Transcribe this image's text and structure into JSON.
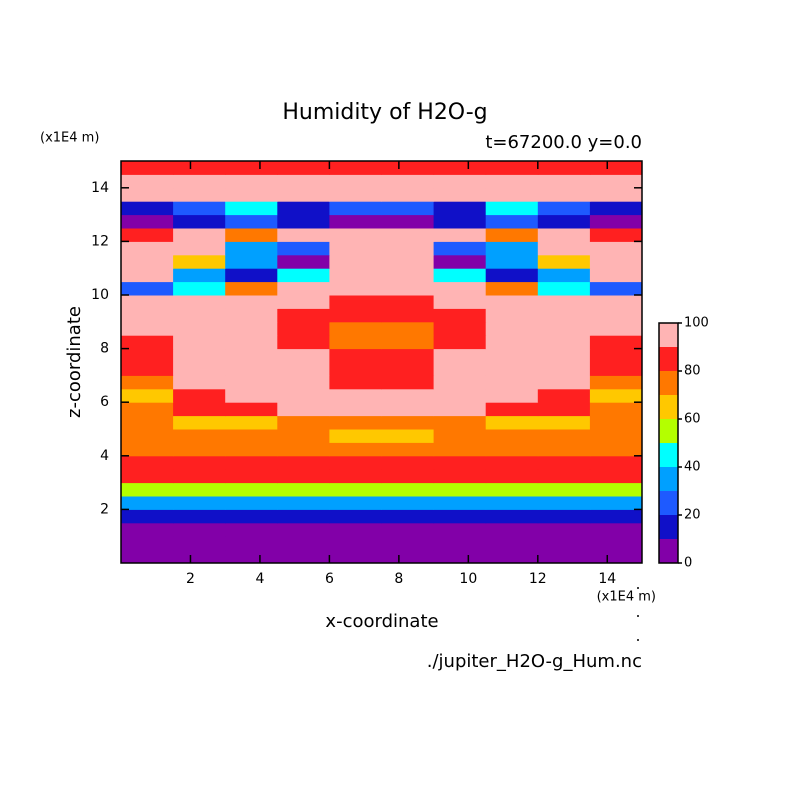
{
  "chart_data": {
    "type": "contour",
    "title": "Humidity of H2O-g",
    "subtitle": "t=67200.0 y=0.0",
    "xlabel": "x-coordinate",
    "ylabel": "z-coordinate",
    "x_unit": "(x1E4 m)",
    "y_unit": "(x1E4 m)",
    "source": "./jupiter_H2O-g_Hum.nc",
    "xlim": [
      0,
      15
    ],
    "ylim": [
      0,
      15
    ],
    "xticks": [
      2,
      4,
      6,
      8,
      10,
      12,
      14
    ],
    "yticks": [
      2,
      4,
      6,
      8,
      10,
      12,
      14
    ],
    "x": [
      0.75,
      2.25,
      3.75,
      5.25,
      6.75,
      8.25,
      9.75,
      11.25,
      12.75,
      14.25
    ],
    "y": [
      0.25,
      0.75,
      1.25,
      1.75,
      2.25,
      2.75,
      3.25,
      3.75,
      4.25,
      4.75,
      5.25,
      5.75,
      6.25,
      6.75,
      7.25,
      7.75,
      8.25,
      8.75,
      9.25,
      9.75,
      10.25,
      10.75,
      11.25,
      11.75,
      12.25,
      12.75,
      13.25,
      13.75,
      14.25,
      14.75
    ],
    "z": [
      [
        5,
        5,
        5,
        5,
        5,
        5,
        5,
        5,
        5,
        5
      ],
      [
        5,
        5,
        5,
        5,
        5,
        5,
        5,
        5,
        5,
        5
      ],
      [
        5,
        5,
        5,
        5,
        5,
        5,
        5,
        5,
        5,
        5
      ],
      [
        15,
        15,
        15,
        15,
        15,
        15,
        15,
        15,
        15,
        15
      ],
      [
        35,
        35,
        35,
        35,
        35,
        35,
        35,
        35,
        35,
        35
      ],
      [
        55,
        55,
        55,
        55,
        55,
        55,
        55,
        55,
        55,
        55
      ],
      [
        85,
        85,
        85,
        85,
        85,
        85,
        85,
        85,
        85,
        85
      ],
      [
        85,
        85,
        85,
        85,
        85,
        85,
        85,
        85,
        85,
        85
      ],
      [
        75,
        75,
        75,
        75,
        75,
        75,
        75,
        75,
        75,
        75
      ],
      [
        75,
        75,
        75,
        75,
        65,
        65,
        75,
        75,
        75,
        75
      ],
      [
        75,
        65,
        65,
        75,
        75,
        75,
        75,
        65,
        65,
        75
      ],
      [
        75,
        85,
        85,
        95,
        95,
        95,
        95,
        85,
        85,
        75
      ],
      [
        65,
        85,
        95,
        95,
        95,
        95,
        95,
        95,
        85,
        65
      ],
      [
        75,
        95,
        95,
        95,
        85,
        85,
        95,
        95,
        95,
        75
      ],
      [
        85,
        95,
        95,
        95,
        85,
        85,
        95,
        95,
        95,
        85
      ],
      [
        85,
        95,
        95,
        95,
        85,
        85,
        95,
        95,
        95,
        85
      ],
      [
        85,
        95,
        95,
        85,
        75,
        75,
        85,
        95,
        95,
        85
      ],
      [
        95,
        95,
        95,
        85,
        75,
        75,
        85,
        95,
        95,
        95
      ],
      [
        95,
        95,
        95,
        85,
        85,
        85,
        85,
        95,
        95,
        95
      ],
      [
        95,
        95,
        95,
        95,
        85,
        85,
        95,
        95,
        95,
        95
      ],
      [
        25,
        45,
        75,
        95,
        95,
        95,
        95,
        75,
        45,
        25
      ],
      [
        95,
        35,
        15,
        45,
        95,
        95,
        45,
        15,
        35,
        95
      ],
      [
        95,
        65,
        35,
        5,
        95,
        95,
        5,
        35,
        65,
        95
      ],
      [
        95,
        95,
        35,
        25,
        95,
        95,
        25,
        35,
        95,
        95
      ],
      [
        85,
        95,
        75,
        95,
        95,
        95,
        95,
        75,
        95,
        85
      ],
      [
        5,
        15,
        25,
        15,
        5,
        5,
        15,
        25,
        15,
        5
      ],
      [
        15,
        25,
        45,
        15,
        25,
        25,
        15,
        45,
        25,
        15
      ],
      [
        95,
        95,
        95,
        95,
        95,
        95,
        95,
        95,
        95,
        95
      ],
      [
        95,
        95,
        95,
        95,
        95,
        95,
        95,
        95,
        95,
        95
      ],
      [
        85,
        85,
        85,
        85,
        85,
        85,
        85,
        85,
        85,
        85
      ]
    ],
    "levels": [
      0,
      10,
      20,
      30,
      40,
      50,
      60,
      70,
      80,
      90,
      100
    ],
    "colors": [
      "#8200a8",
      "#1010c8",
      "#1e5aff",
      "#00a0ff",
      "#00ffff",
      "#b4ff00",
      "#ffc800",
      "#ff7800",
      "#ff2020",
      "#ffb4b4"
    ],
    "cbar_ticks": [
      0,
      20,
      40,
      60,
      80,
      100
    ]
  }
}
